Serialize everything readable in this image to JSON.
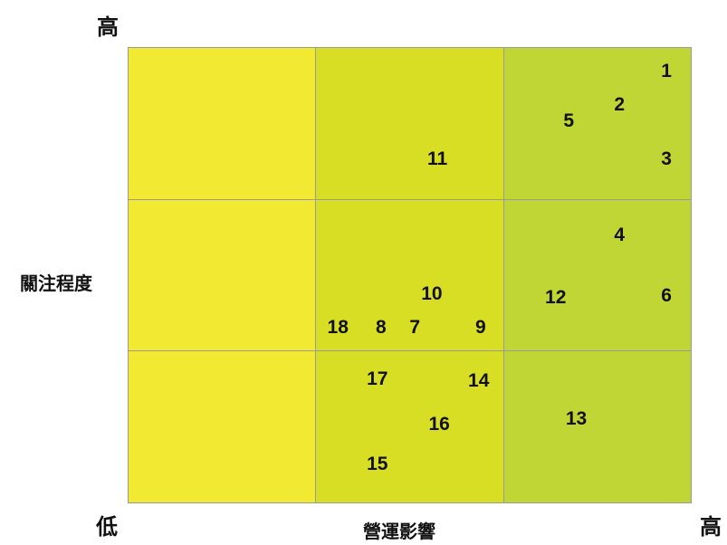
{
  "labels": {
    "y_high": "高",
    "x_high": "高",
    "origin_low": "低",
    "y_axis": "關注程度",
    "x_axis": "營運影響"
  },
  "colors": {
    "left": "#f2e932",
    "middle": "#d8de24",
    "right": "#c0d634",
    "border": "#9a9a9a"
  },
  "chart_data": {
    "type": "scatter",
    "x_label": "營運影響",
    "y_label": "關注程度",
    "xlim": [
      0,
      3
    ],
    "ylim": [
      0,
      3
    ],
    "grid": {
      "columns": 3,
      "rows": 3
    },
    "points": [
      {
        "label": "1",
        "x": 2.87,
        "y": 2.84
      },
      {
        "label": "2",
        "x": 2.62,
        "y": 2.62
      },
      {
        "label": "3",
        "x": 2.87,
        "y": 2.26
      },
      {
        "label": "4",
        "x": 2.62,
        "y": 1.76
      },
      {
        "label": "5",
        "x": 2.35,
        "y": 2.51
      },
      {
        "label": "6",
        "x": 2.87,
        "y": 1.36
      },
      {
        "label": "7",
        "x": 1.53,
        "y": 1.15
      },
      {
        "label": "8",
        "x": 1.35,
        "y": 1.15
      },
      {
        "label": "9",
        "x": 1.88,
        "y": 1.15
      },
      {
        "label": "10",
        "x": 1.62,
        "y": 1.37
      },
      {
        "label": "11",
        "x": 1.65,
        "y": 2.26
      },
      {
        "label": "12",
        "x": 2.28,
        "y": 1.35
      },
      {
        "label": "13",
        "x": 2.39,
        "y": 0.55
      },
      {
        "label": "14",
        "x": 1.87,
        "y": 0.8
      },
      {
        "label": "15",
        "x": 1.33,
        "y": 0.25
      },
      {
        "label": "16",
        "x": 1.66,
        "y": 0.51
      },
      {
        "label": "17",
        "x": 1.33,
        "y": 0.81
      },
      {
        "label": "18",
        "x": 1.12,
        "y": 1.15
      }
    ]
  }
}
